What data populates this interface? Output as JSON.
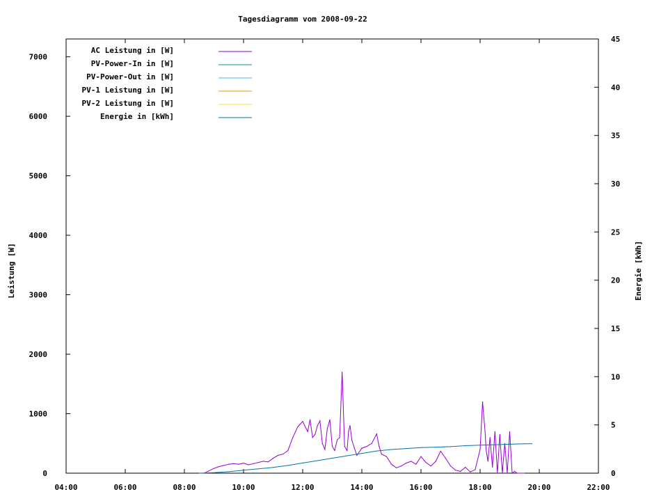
{
  "chart_data": {
    "type": "line",
    "title": "Tagesdiagramm vom 2008-09-22",
    "ylabel": "Leistung [W]",
    "y2label": "Energie [kWh]",
    "xlabel": "",
    "xlim": [
      "04:00",
      "22:00"
    ],
    "ylim": [
      0,
      7300
    ],
    "y2lim": [
      0,
      45
    ],
    "x_ticks": [
      "04:00",
      "06:00",
      "08:00",
      "10:00",
      "12:00",
      "14:00",
      "16:00",
      "18:00",
      "20:00",
      "22:00"
    ],
    "y_ticks": [
      "0",
      "1000",
      "2000",
      "3000",
      "4000",
      "5000",
      "6000",
      "7000"
    ],
    "y2_ticks": [
      "0",
      "5",
      "10",
      "15",
      "20",
      "25",
      "30",
      "35",
      "40",
      "45"
    ],
    "legend_position": "top-left",
    "grid": false,
    "series": [
      {
        "name": "AC Leistung in [W]",
        "axis": "left",
        "color": "#9400d3",
        "x": [
          "08:40",
          "08:50",
          "09:00",
          "09:10",
          "09:20",
          "09:30",
          "09:40",
          "09:50",
          "10:00",
          "10:10",
          "10:20",
          "10:30",
          "10:40",
          "10:50",
          "11:00",
          "11:10",
          "11:20",
          "11:30",
          "11:40",
          "11:50",
          "12:00",
          "12:10",
          "12:15",
          "12:20",
          "12:25",
          "12:30",
          "12:35",
          "12:40",
          "12:45",
          "12:50",
          "12:55",
          "13:00",
          "13:05",
          "13:10",
          "13:15",
          "13:20",
          "13:25",
          "13:30",
          "13:33",
          "13:36",
          "13:40",
          "13:45",
          "13:50",
          "14:00",
          "14:10",
          "14:20",
          "14:30",
          "14:35",
          "14:40",
          "14:50",
          "15:00",
          "15:10",
          "15:20",
          "15:30",
          "15:40",
          "15:50",
          "16:00",
          "16:10",
          "16:20",
          "16:30",
          "16:40",
          "16:50",
          "17:00",
          "17:10",
          "17:20",
          "17:30",
          "17:40",
          "17:50",
          "18:00",
          "18:05",
          "18:10",
          "18:12",
          "18:14",
          "18:16",
          "18:20",
          "18:25",
          "18:30",
          "18:35",
          "18:40",
          "18:45",
          "18:50",
          "18:55",
          "19:00",
          "19:05",
          "19:10",
          "19:15",
          "19:20",
          "19:30"
        ],
        "values": [
          0,
          40,
          80,
          110,
          130,
          150,
          160,
          150,
          170,
          140,
          160,
          180,
          200,
          190,
          250,
          300,
          320,
          380,
          600,
          780,
          870,
          700,
          900,
          600,
          650,
          800,
          880,
          500,
          400,
          750,
          900,
          450,
          380,
          560,
          600,
          1700,
          450,
          380,
          700,
          800,
          550,
          420,
          300,
          420,
          450,
          500,
          660,
          450,
          320,
          280,
          150,
          90,
          120,
          170,
          200,
          150,
          280,
          180,
          120,
          200,
          370,
          250,
          120,
          50,
          30,
          100,
          20,
          60,
          400,
          1200,
          700,
          400,
          300,
          200,
          600,
          100,
          700,
          0,
          650,
          0,
          500,
          0,
          700,
          0,
          30,
          0,
          0,
          0
        ]
      },
      {
        "name": "PV-Power-In in [W]",
        "axis": "left",
        "color": "#009e73",
        "x": [],
        "values": []
      },
      {
        "name": "PV-Power-Out in [W]",
        "axis": "left",
        "color": "#56b4e9",
        "x": [],
        "values": []
      },
      {
        "name": "PV-1 Leistung in [W]",
        "axis": "left",
        "color": "#e69f00",
        "x": [],
        "values": []
      },
      {
        "name": "PV-2 Leistung in [W]",
        "axis": "left",
        "color": "#f0e442",
        "x": [],
        "values": []
      },
      {
        "name": "Energie in [kWh]",
        "axis": "right",
        "color": "#0072b2",
        "x": [
          "08:30",
          "09:00",
          "09:30",
          "10:00",
          "10:30",
          "11:00",
          "11:30",
          "12:00",
          "12:30",
          "13:00",
          "13:30",
          "14:00",
          "14:30",
          "15:00",
          "15:30",
          "16:00",
          "16:30",
          "17:00",
          "17:30",
          "18:00",
          "18:30",
          "19:00",
          "19:30",
          "19:45"
        ],
        "values": [
          0,
          0.05,
          0.15,
          0.3,
          0.45,
          0.6,
          0.8,
          1.05,
          1.3,
          1.55,
          1.8,
          2.05,
          2.3,
          2.45,
          2.55,
          2.65,
          2.7,
          2.75,
          2.85,
          2.9,
          2.95,
          3.0,
          3.05,
          3.05
        ]
      }
    ]
  }
}
